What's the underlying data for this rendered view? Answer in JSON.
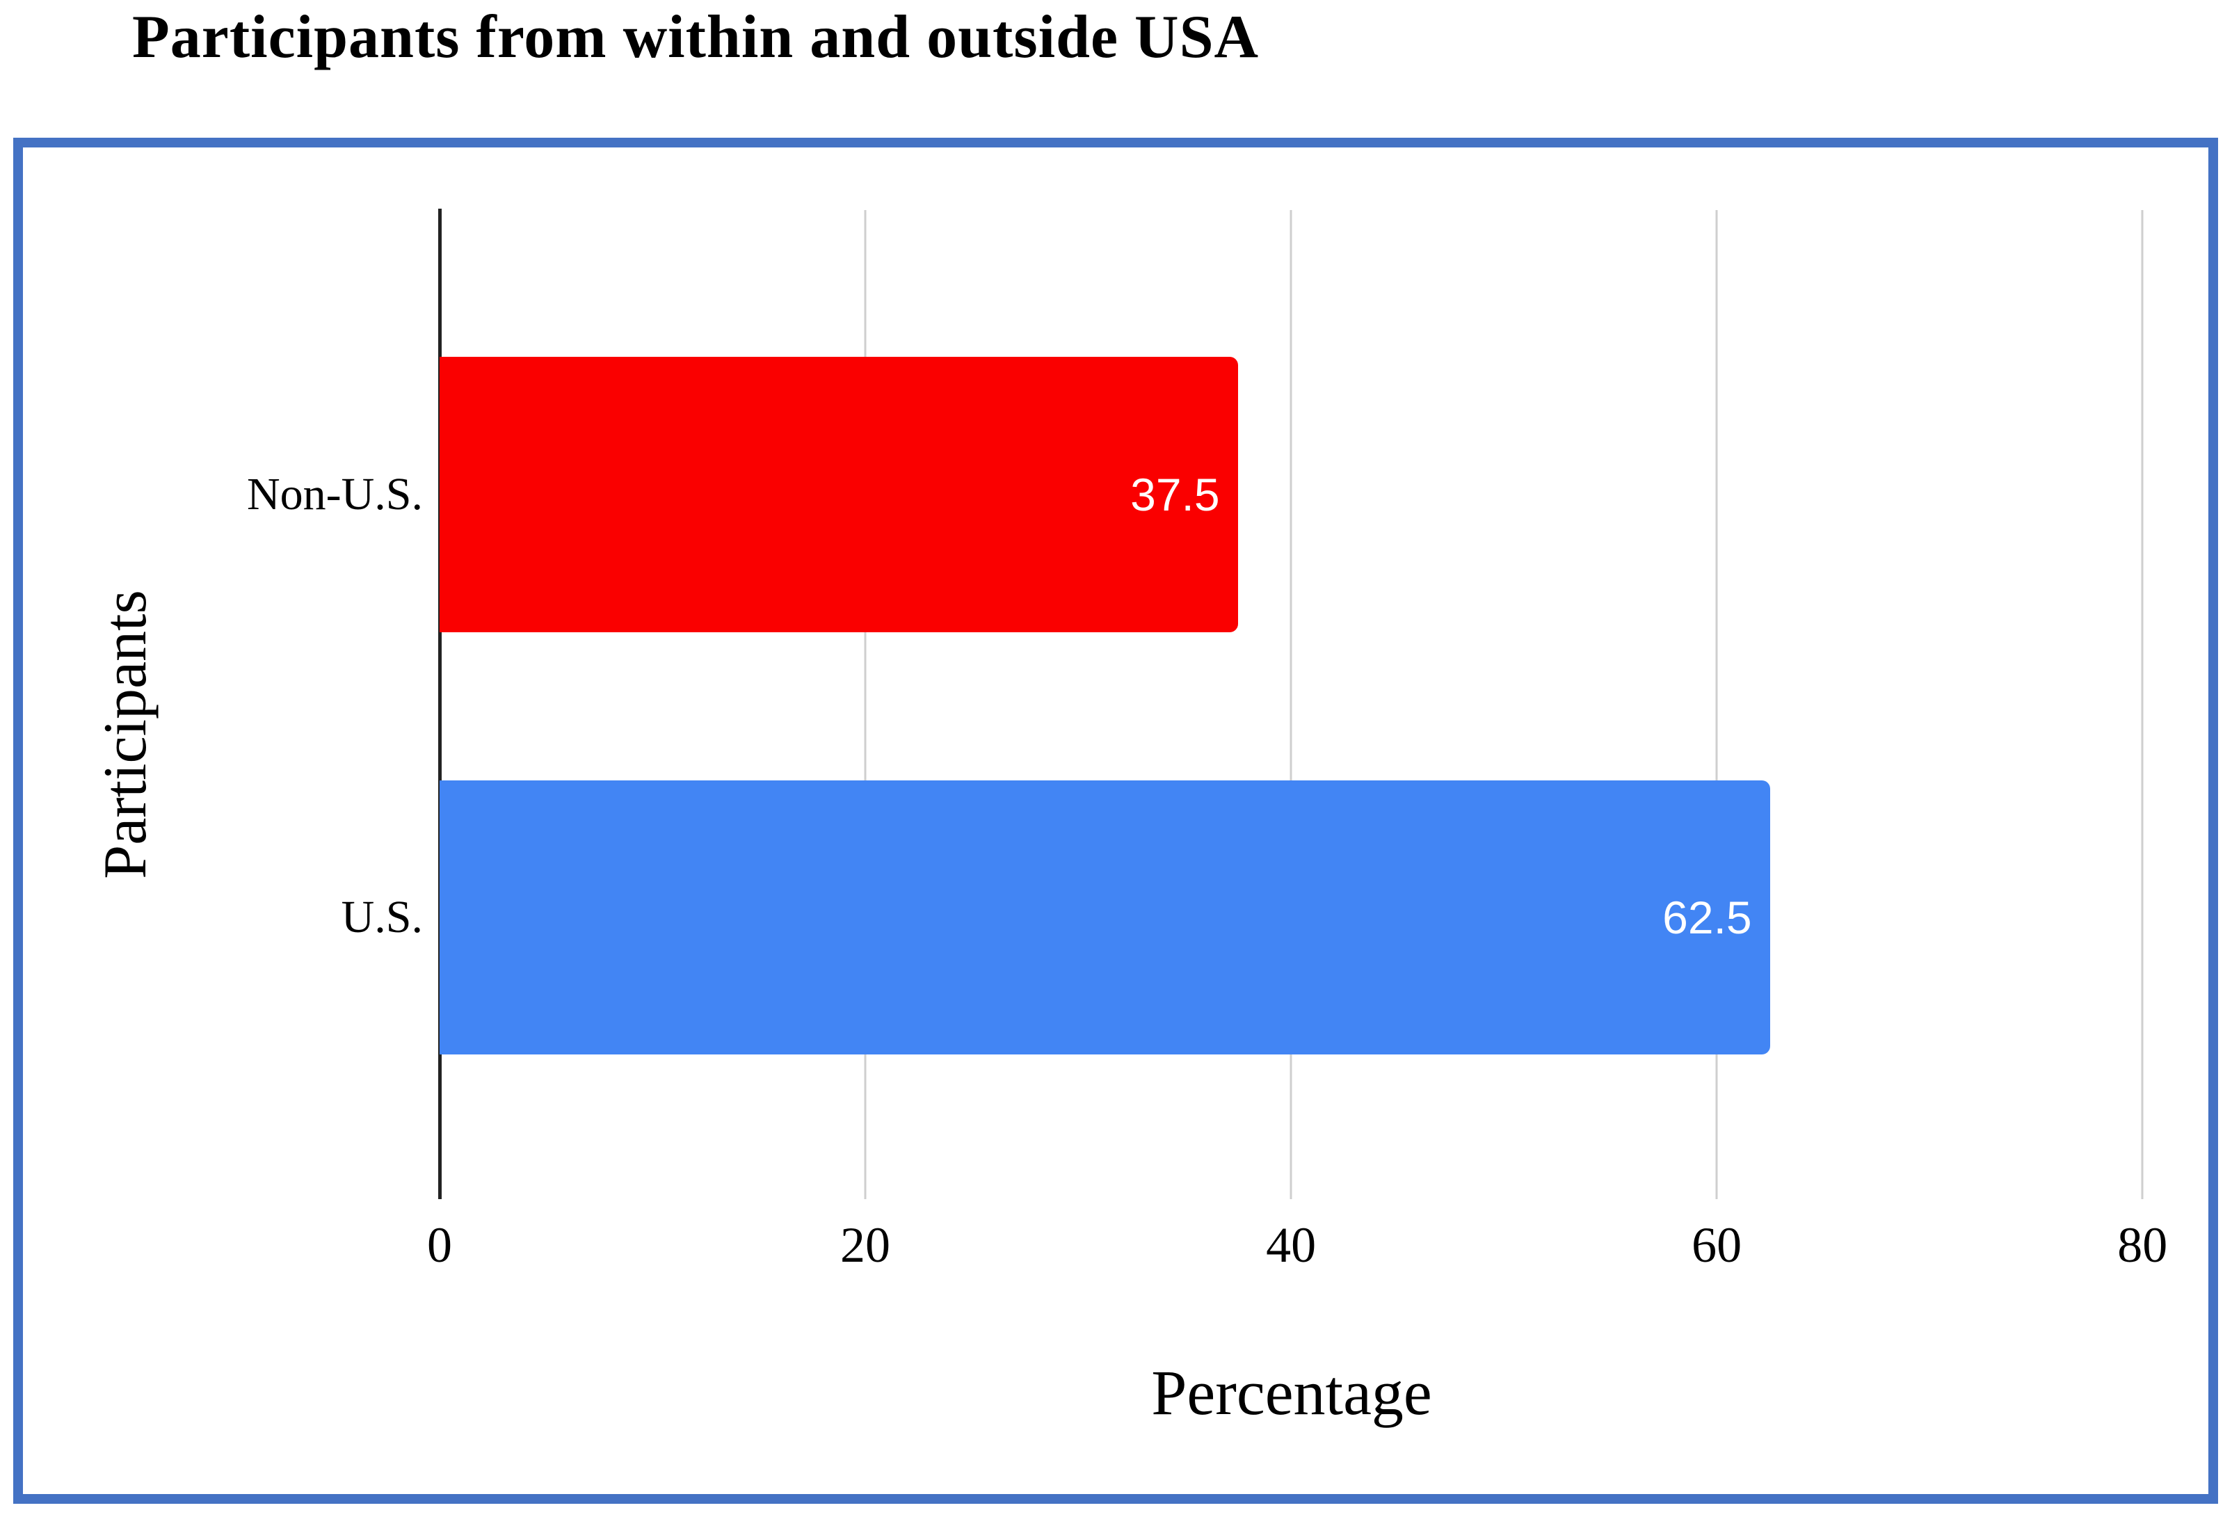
{
  "title": {
    "text": "Participants from within and outside USA"
  },
  "chart_data": {
    "type": "bar",
    "orientation": "horizontal",
    "title": "Participants from within and outside USA",
    "categories": [
      "Non-U.S.",
      "U.S."
    ],
    "values": [
      37.5,
      62.5
    ],
    "data_labels": [
      "37.5",
      "62.5"
    ],
    "series_colors": [
      "#fa0000",
      "#4285f4"
    ],
    "data_label_color": "#ffffff",
    "xlabel": "Percentage",
    "ylabel": "Participants",
    "xlim": [
      0,
      80
    ],
    "xticks": [
      0,
      20,
      40,
      60,
      80
    ],
    "grid": true,
    "legend": "none",
    "frame_color": "#4472c4",
    "gridline_color": "#cfcfcf",
    "axis_line_color": "#222222",
    "background_color": "#ffffff"
  }
}
